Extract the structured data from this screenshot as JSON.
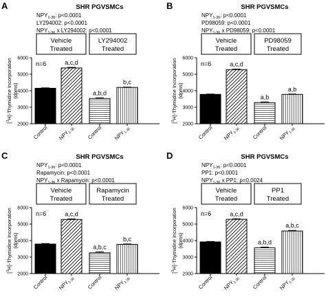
{
  "chart_data": [
    {
      "type": "bar",
      "panel_letter": "A",
      "title": "SHR PGVSMCs",
      "stats": [
        {
          "a": "NPY",
          "sub": "1-36",
          "b": ": p<0.0001"
        },
        {
          "a": "LY294002: p<0.0001"
        },
        {
          "a": "NPY",
          "sub": "1-36",
          "b": " x LY294002: p<0.0001"
        }
      ],
      "groups": [
        {
          "label": [
            "Vehicle",
            "Treated"
          ]
        },
        {
          "label": [
            "LY294002",
            "Treated"
          ]
        }
      ],
      "n_label": "n=6",
      "categories": [
        {
          "a": "Control"
        },
        {
          "a": "NPY",
          "sub": "1-36"
        },
        {
          "a": "Control"
        },
        {
          "a": "NPY",
          "sub": "1-36"
        }
      ],
      "values": [
        4150,
        5380,
        3530,
        4200
      ],
      "errors": [
        25,
        35,
        40,
        20
      ],
      "bar_styles": [
        "solid",
        "diagonal",
        "horizontal",
        "vertical"
      ],
      "bar_labels": [
        "",
        "a,c,d",
        "a,b,d",
        "b,c"
      ],
      "ylabel": {
        "pre": "[",
        "sup": "3",
        "post": "H]-Thymidine Incorporation",
        "line2": "(dpms)"
      },
      "ylim": [
        2000,
        6000
      ],
      "yticks": [
        2000,
        3000,
        4000,
        5000,
        6000
      ]
    },
    {
      "type": "bar",
      "panel_letter": "B",
      "title": "SHR PGVSMCs",
      "stats": [
        {
          "a": "NPY",
          "sub": "1-36",
          "b": ": p<0.0001"
        },
        {
          "a": "PD98059: p<0.0001"
        },
        {
          "a": "NPY",
          "sub": "1-36",
          "b": " x PD98059: p<0.0001"
        }
      ],
      "groups": [
        {
          "label": [
            "Vehicle",
            "Treated"
          ]
        },
        {
          "label": [
            "PD98059",
            "Treated"
          ]
        }
      ],
      "n_label": "n=6",
      "categories": [
        {
          "a": "Control"
        },
        {
          "a": "NPY",
          "sub": "1-36"
        },
        {
          "a": "Control"
        },
        {
          "a": "NPY",
          "sub": "1-36"
        }
      ],
      "values": [
        3780,
        5280,
        3280,
        3780
      ],
      "errors": [
        20,
        30,
        40,
        20
      ],
      "bar_styles": [
        "solid",
        "diagonal",
        "horizontal",
        "vertical"
      ],
      "bar_labels": [
        "",
        "a,c,d",
        "a,b",
        "a,b"
      ],
      "ylabel": {
        "pre": "[",
        "sup": "3",
        "post": "H]-Thymidine Incorporation",
        "line2": "(dpms)"
      },
      "ylim": [
        2000,
        6000
      ],
      "yticks": [
        2000,
        3000,
        4000,
        5000,
        6000
      ]
    },
    {
      "type": "bar",
      "panel_letter": "C",
      "title": "SHR PGVSMCs",
      "stats": [
        {
          "a": "NPY",
          "sub": "1-36",
          "b": ": p<0.0001"
        },
        {
          "a": "Rapamycin: p<0.0001"
        },
        {
          "a": "NPY",
          "sub": "1-36",
          "b": " x Rapamycin: p<0.0001"
        }
      ],
      "groups": [
        {
          "label": [
            "Vehicle",
            "Treated"
          ]
        },
        {
          "label": [
            "Rapamycin",
            "Treated"
          ]
        }
      ],
      "n_label": "n=6",
      "categories": [
        {
          "a": "Control"
        },
        {
          "a": "NPY",
          "sub": "1-36"
        },
        {
          "a": "Control"
        },
        {
          "a": "NPY",
          "sub": "1-36"
        }
      ],
      "values": [
        3790,
        5280,
        3260,
        3770
      ],
      "errors": [
        30,
        30,
        60,
        25
      ],
      "bar_styles": [
        "solid",
        "diagonal",
        "horizontal",
        "vertical"
      ],
      "bar_labels": [
        "",
        "a,c,d",
        "a,b,c",
        "b,c"
      ],
      "ylabel": {
        "pre": "[",
        "sup": "3",
        "post": "H]-Thymidine Incorporation",
        "line2": "(dpms)"
      },
      "ylim": [
        2000,
        6000
      ],
      "yticks": [
        2000,
        3000,
        4000,
        5000,
        6000
      ]
    },
    {
      "type": "bar",
      "panel_letter": "D",
      "title": "SHR PGVSMCs",
      "stats": [
        {
          "a": "NPY",
          "sub": "1-36",
          "b": ": p<0.0001"
        },
        {
          "a": "PP1: p<0.0001"
        },
        {
          "a": "NPY",
          "sub": "1-36",
          "b": " x PP1: p=0.0024"
        }
      ],
      "groups": [
        {
          "label": [
            "Vehicle",
            "Treated"
          ]
        },
        {
          "label": [
            "PP1",
            "Treated"
          ]
        }
      ],
      "n_label": "n=6",
      "categories": [
        {
          "a": "Control"
        },
        {
          "a": "NPY",
          "sub": "1-36"
        },
        {
          "a": "Control"
        },
        {
          "a": "NPY",
          "sub": "1-36"
        }
      ],
      "values": [
        3920,
        5290,
        3560,
        4580
      ],
      "errors": [
        25,
        30,
        40,
        35
      ],
      "bar_styles": [
        "solid",
        "diagonal",
        "horizontal",
        "vertical"
      ],
      "bar_labels": [
        "",
        "a,c,d",
        "a,b,d",
        "a,b,c"
      ],
      "ylabel": {
        "pre": "[",
        "sup": "3",
        "post": "H]-Thymidine Incorporation",
        "line2": "(dpms)"
      },
      "ylim": [
        2000,
        6000
      ],
      "yticks": [
        2000,
        3000,
        4000,
        5000,
        6000
      ]
    }
  ]
}
